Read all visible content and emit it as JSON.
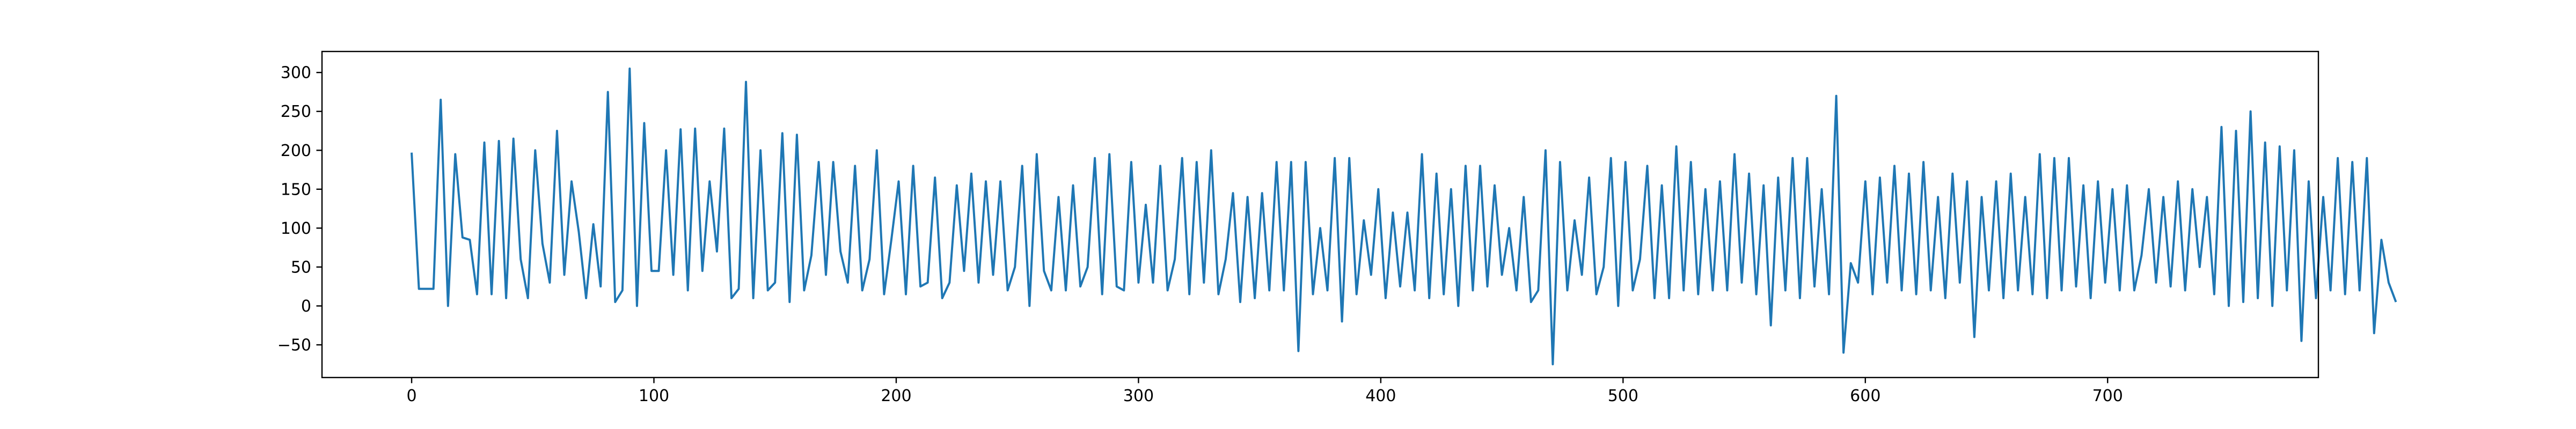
{
  "chart_data": {
    "type": "line",
    "title": "",
    "xlabel": "",
    "ylabel": "",
    "xlim": [
      -37,
      787
    ],
    "ylim": [
      -92,
      327
    ],
    "grid": false,
    "legend": "none",
    "colors": {
      "line": "#1f77b4",
      "axes": "#000000",
      "background": "#ffffff"
    },
    "x_ticks": [
      0,
      100,
      200,
      300,
      400,
      500,
      600,
      700
    ],
    "x_tick_labels": [
      "0",
      "100",
      "200",
      "300",
      "400",
      "500",
      "600",
      "700"
    ],
    "y_ticks": [
      -50,
      0,
      50,
      100,
      150,
      200,
      250,
      300
    ],
    "y_tick_labels": [
      "−50",
      "0",
      "50",
      "100",
      "150",
      "200",
      "250",
      "300"
    ],
    "x_start": 0,
    "x_step": 3,
    "series": [
      {
        "values": [
          197,
          22,
          22,
          22,
          265,
          0,
          195,
          88,
          85,
          15,
          210,
          15,
          212,
          10,
          215,
          60,
          10,
          200,
          80,
          30,
          225,
          40,
          160,
          95,
          10,
          105,
          25,
          275,
          5,
          20,
          305,
          0,
          235,
          45,
          45,
          200,
          40,
          227,
          20,
          228,
          45,
          160,
          70,
          228,
          10,
          22,
          288,
          10,
          200,
          20,
          30,
          222,
          5,
          220,
          20,
          65,
          185,
          40,
          185,
          70,
          30,
          180,
          20,
          60,
          200,
          15,
          85,
          160,
          15,
          180,
          25,
          30,
          165,
          10,
          30,
          155,
          45,
          170,
          30,
          160,
          40,
          160,
          20,
          50,
          180,
          0,
          195,
          45,
          20,
          140,
          20,
          155,
          25,
          50,
          190,
          15,
          195,
          25,
          20,
          185,
          30,
          130,
          30,
          180,
          20,
          60,
          190,
          15,
          185,
          30,
          200,
          15,
          60,
          145,
          5,
          140,
          10,
          145,
          20,
          185,
          20,
          185,
          -58,
          185,
          15,
          100,
          20,
          190,
          -20,
          190,
          15,
          110,
          40,
          150,
          10,
          120,
          25,
          120,
          20,
          195,
          10,
          170,
          15,
          150,
          0,
          180,
          20,
          180,
          25,
          155,
          40,
          100,
          20,
          140,
          5,
          20,
          200,
          -75,
          185,
          20,
          110,
          40,
          165,
          15,
          50,
          190,
          0,
          185,
          20,
          60,
          180,
          10,
          155,
          10,
          205,
          20,
          185,
          15,
          150,
          20,
          160,
          20,
          195,
          30,
          170,
          15,
          155,
          -25,
          165,
          20,
          190,
          10,
          190,
          25,
          150,
          15,
          270,
          -60,
          55,
          30,
          160,
          15,
          165,
          30,
          180,
          20,
          170,
          15,
          185,
          20,
          140,
          10,
          170,
          30,
          160,
          -40,
          140,
          20,
          160,
          10,
          170,
          20,
          140,
          15,
          195,
          10,
          190,
          20,
          190,
          25,
          155,
          10,
          160,
          30,
          150,
          20,
          155,
          20,
          65,
          150,
          30,
          140,
          25,
          160,
          20,
          150,
          50,
          140,
          15,
          230,
          0,
          225,
          5,
          250,
          10,
          210,
          0,
          205,
          20,
          200,
          -45,
          160,
          10,
          140,
          20,
          190,
          15,
          185,
          20,
          190,
          -35,
          85,
          30,
          5
        ]
      }
    ]
  }
}
